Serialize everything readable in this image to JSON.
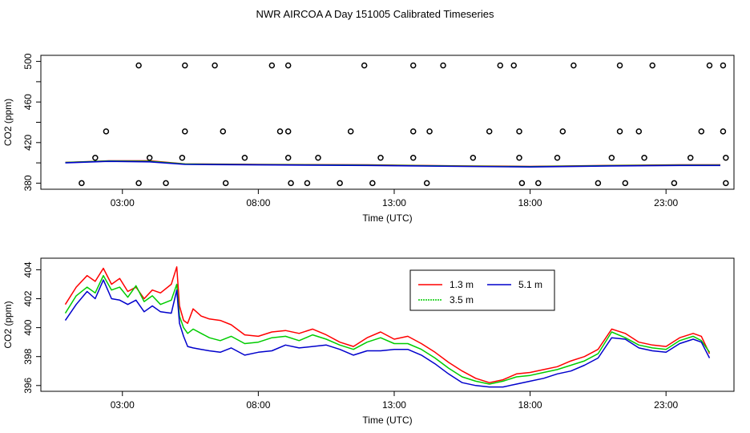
{
  "title": "NWR AIRCOA A  Day 151005  Calibrated Timeseries",
  "chart_data": [
    {
      "type": "scatter",
      "id": "top",
      "title": "NWR AIRCOA A  Day 151005  Calibrated Timeseries",
      "xlabel": "Time (UTC)",
      "ylabel": "CO2 (ppm)",
      "xlim": [
        0,
        25.5
      ],
      "ylim": [
        374,
        506
      ],
      "x_ticks": [
        3,
        8,
        13,
        18,
        23
      ],
      "x_tick_labels": [
        "03:00",
        "08:00",
        "13:00",
        "18:00",
        "23:00"
      ],
      "y_ticks": [
        380,
        420,
        460,
        500
      ],
      "y_tick_labels": [
        "380",
        "420",
        "460",
        "500"
      ],
      "y_minor_ticks": [
        400,
        440,
        480
      ],
      "outlier_points": [
        {
          "x": 3.6,
          "y": 496
        },
        {
          "x": 5.3,
          "y": 496
        },
        {
          "x": 6.4,
          "y": 496
        },
        {
          "x": 8.5,
          "y": 496
        },
        {
          "x": 9.1,
          "y": 496
        },
        {
          "x": 11.9,
          "y": 496
        },
        {
          "x": 13.7,
          "y": 496
        },
        {
          "x": 14.8,
          "y": 496
        },
        {
          "x": 16.9,
          "y": 496
        },
        {
          "x": 17.4,
          "y": 496
        },
        {
          "x": 19.6,
          "y": 496
        },
        {
          "x": 21.3,
          "y": 496
        },
        {
          "x": 22.5,
          "y": 496
        },
        {
          "x": 24.6,
          "y": 496
        },
        {
          "x": 25.1,
          "y": 496
        },
        {
          "x": 2.4,
          "y": 431
        },
        {
          "x": 5.3,
          "y": 431
        },
        {
          "x": 6.7,
          "y": 431
        },
        {
          "x": 8.8,
          "y": 431
        },
        {
          "x": 9.1,
          "y": 431
        },
        {
          "x": 11.4,
          "y": 431
        },
        {
          "x": 13.7,
          "y": 431
        },
        {
          "x": 14.3,
          "y": 431
        },
        {
          "x": 16.5,
          "y": 431
        },
        {
          "x": 17.6,
          "y": 431
        },
        {
          "x": 19.2,
          "y": 431
        },
        {
          "x": 21.3,
          "y": 431
        },
        {
          "x": 22.0,
          "y": 431
        },
        {
          "x": 24.3,
          "y": 431
        },
        {
          "x": 25.1,
          "y": 431
        },
        {
          "x": 2.0,
          "y": 405
        },
        {
          "x": 4.0,
          "y": 405
        },
        {
          "x": 5.2,
          "y": 405
        },
        {
          "x": 7.5,
          "y": 405
        },
        {
          "x": 9.1,
          "y": 405
        },
        {
          "x": 10.2,
          "y": 405
        },
        {
          "x": 12.5,
          "y": 405
        },
        {
          "x": 13.7,
          "y": 405
        },
        {
          "x": 15.9,
          "y": 405
        },
        {
          "x": 17.6,
          "y": 405
        },
        {
          "x": 19.0,
          "y": 405
        },
        {
          "x": 21.0,
          "y": 405
        },
        {
          "x": 22.2,
          "y": 405
        },
        {
          "x": 23.9,
          "y": 405
        },
        {
          "x": 25.2,
          "y": 405
        },
        {
          "x": 1.5,
          "y": 380
        },
        {
          "x": 3.6,
          "y": 380
        },
        {
          "x": 4.6,
          "y": 380
        },
        {
          "x": 6.8,
          "y": 380
        },
        {
          "x": 9.2,
          "y": 380
        },
        {
          "x": 9.8,
          "y": 380
        },
        {
          "x": 11.0,
          "y": 380
        },
        {
          "x": 12.2,
          "y": 380
        },
        {
          "x": 14.2,
          "y": 380
        },
        {
          "x": 17.7,
          "y": 380
        },
        {
          "x": 18.3,
          "y": 380
        },
        {
          "x": 20.5,
          "y": 380
        },
        {
          "x": 21.5,
          "y": 380
        },
        {
          "x": 23.3,
          "y": 380
        },
        {
          "x": 25.2,
          "y": 380
        }
      ],
      "baseline_series": [
        {
          "name": "1.3 m",
          "color": "#ff0000",
          "x": [
            0.9,
            2.5,
            4.0,
            5.3,
            8.0,
            12.0,
            15.5,
            18.0,
            21.0,
            23.5,
            25.0
          ],
          "y": [
            400.5,
            402.0,
            402.0,
            399.0,
            398.5,
            398.0,
            397.0,
            396.5,
            397.5,
            398.0,
            398.0
          ]
        },
        {
          "name": "3.5 m",
          "color": "#00cc00",
          "x": [
            0.9,
            2.5,
            4.0,
            5.3,
            8.0,
            12.0,
            15.5,
            18.0,
            21.0,
            23.5,
            25.0
          ],
          "y": [
            400.3,
            401.8,
            401.5,
            398.8,
            398.3,
            397.8,
            396.8,
            396.3,
            397.3,
            397.8,
            397.8
          ]
        },
        {
          "name": "5.1 m",
          "color": "#0000cc",
          "x": [
            0.9,
            2.5,
            4.0,
            5.3,
            8.0,
            12.0,
            15.5,
            18.0,
            21.0,
            23.5,
            25.0
          ],
          "y": [
            400.0,
            401.5,
            401.0,
            398.5,
            398.0,
            397.5,
            396.5,
            396.0,
            397.0,
            397.5,
            397.5
          ]
        }
      ]
    },
    {
      "type": "line",
      "id": "bottom",
      "xlabel": "Time (UTC)",
      "ylabel": "CO2 (ppm)",
      "xlim": [
        0,
        25.5
      ],
      "ylim": [
        395.6,
        404.8
      ],
      "x_ticks": [
        3,
        8,
        13,
        18,
        23
      ],
      "x_tick_labels": [
        "03:00",
        "08:00",
        "13:00",
        "18:00",
        "23:00"
      ],
      "y_ticks": [
        396,
        398,
        400,
        402,
        404
      ],
      "y_tick_labels": [
        "396",
        "398",
        "400",
        "402",
        "404"
      ],
      "legend_position": "top-center",
      "series": [
        {
          "name": "1.3 m",
          "color": "#ff0000",
          "x": [
            0.9,
            1.3,
            1.7,
            2.0,
            2.3,
            2.6,
            2.9,
            3.2,
            3.5,
            3.8,
            4.1,
            4.4,
            4.8,
            5.0,
            5.1,
            5.25,
            5.4,
            5.6,
            5.9,
            6.2,
            6.6,
            7.0,
            7.5,
            8.0,
            8.5,
            9.0,
            9.5,
            10.0,
            10.5,
            11.0,
            11.5,
            12.0,
            12.5,
            13.0,
            13.5,
            14.0,
            14.5,
            15.0,
            15.5,
            16.0,
            16.5,
            17.0,
            17.5,
            18.0,
            18.5,
            19.0,
            19.5,
            20.0,
            20.5,
            21.0,
            21.5,
            22.0,
            22.5,
            23.0,
            23.5,
            24.0,
            24.3,
            24.6
          ],
          "y": [
            401.6,
            402.8,
            403.6,
            403.2,
            404.1,
            403.0,
            403.4,
            402.5,
            402.8,
            402.0,
            402.6,
            402.4,
            403.0,
            404.2,
            401.5,
            400.5,
            400.3,
            401.3,
            400.8,
            400.6,
            400.5,
            400.2,
            399.5,
            399.4,
            399.7,
            399.8,
            399.6,
            399.9,
            399.5,
            399.0,
            398.7,
            399.3,
            399.7,
            399.2,
            399.4,
            398.9,
            398.3,
            397.6,
            397.0,
            396.5,
            396.2,
            396.4,
            396.8,
            396.9,
            397.1,
            397.3,
            397.7,
            398.0,
            398.5,
            399.9,
            399.6,
            399.0,
            398.8,
            398.7,
            399.3,
            399.6,
            399.4,
            398.2
          ]
        },
        {
          "name": "3.5 m",
          "color": "#00cc00",
          "x": [
            0.9,
            1.3,
            1.7,
            2.0,
            2.3,
            2.6,
            2.9,
            3.2,
            3.5,
            3.8,
            4.1,
            4.4,
            4.8,
            5.0,
            5.1,
            5.25,
            5.4,
            5.6,
            5.9,
            6.2,
            6.6,
            7.0,
            7.5,
            8.0,
            8.5,
            9.0,
            9.5,
            10.0,
            10.5,
            11.0,
            11.5,
            12.0,
            12.5,
            13.0,
            13.5,
            14.0,
            14.5,
            15.0,
            15.5,
            16.0,
            16.5,
            17.0,
            17.5,
            18.0,
            18.5,
            19.0,
            19.5,
            20.0,
            20.5,
            21.0,
            21.5,
            22.0,
            22.5,
            23.0,
            23.5,
            24.0,
            24.3,
            24.6
          ],
          "y": [
            401.0,
            402.2,
            402.8,
            402.4,
            403.6,
            402.6,
            402.8,
            402.1,
            402.9,
            401.8,
            402.2,
            401.6,
            401.9,
            403.0,
            400.8,
            400.0,
            399.6,
            399.9,
            399.6,
            399.3,
            399.1,
            399.4,
            398.9,
            399.0,
            399.3,
            399.4,
            399.1,
            399.5,
            399.2,
            398.8,
            398.5,
            399.0,
            399.3,
            398.9,
            398.9,
            398.5,
            397.9,
            397.2,
            396.6,
            396.3,
            396.1,
            396.3,
            396.6,
            396.7,
            396.9,
            397.1,
            397.4,
            397.7,
            398.2,
            399.7,
            399.3,
            398.8,
            398.6,
            398.5,
            399.1,
            399.4,
            399.1,
            398.3
          ]
        },
        {
          "name": "5.1 m",
          "color": "#0000cc",
          "x": [
            0.9,
            1.3,
            1.7,
            2.0,
            2.3,
            2.6,
            2.9,
            3.2,
            3.5,
            3.8,
            4.1,
            4.4,
            4.8,
            5.0,
            5.1,
            5.25,
            5.4,
            5.6,
            5.9,
            6.2,
            6.6,
            7.0,
            7.5,
            8.0,
            8.5,
            9.0,
            9.5,
            10.0,
            10.5,
            11.0,
            11.5,
            12.0,
            12.5,
            13.0,
            13.5,
            14.0,
            14.5,
            15.0,
            15.5,
            16.0,
            16.5,
            17.0,
            17.5,
            18.0,
            18.5,
            19.0,
            19.5,
            20.0,
            20.5,
            21.0,
            21.5,
            22.0,
            22.5,
            23.0,
            23.5,
            24.0,
            24.3,
            24.6
          ],
          "y": [
            400.5,
            401.6,
            402.5,
            402.0,
            403.3,
            402.0,
            401.9,
            401.6,
            401.9,
            401.1,
            401.5,
            401.1,
            401.0,
            402.6,
            400.3,
            399.4,
            398.7,
            398.6,
            398.5,
            398.4,
            398.3,
            398.6,
            398.1,
            398.3,
            398.4,
            398.8,
            398.6,
            398.7,
            398.8,
            398.5,
            398.1,
            398.4,
            398.4,
            398.5,
            398.5,
            398.1,
            397.5,
            396.8,
            396.2,
            396.0,
            395.9,
            395.9,
            396.1,
            396.3,
            396.5,
            396.8,
            397.0,
            397.4,
            397.9,
            399.3,
            399.2,
            398.6,
            398.4,
            398.3,
            398.9,
            399.2,
            399.0,
            397.9
          ]
        }
      ]
    }
  ]
}
